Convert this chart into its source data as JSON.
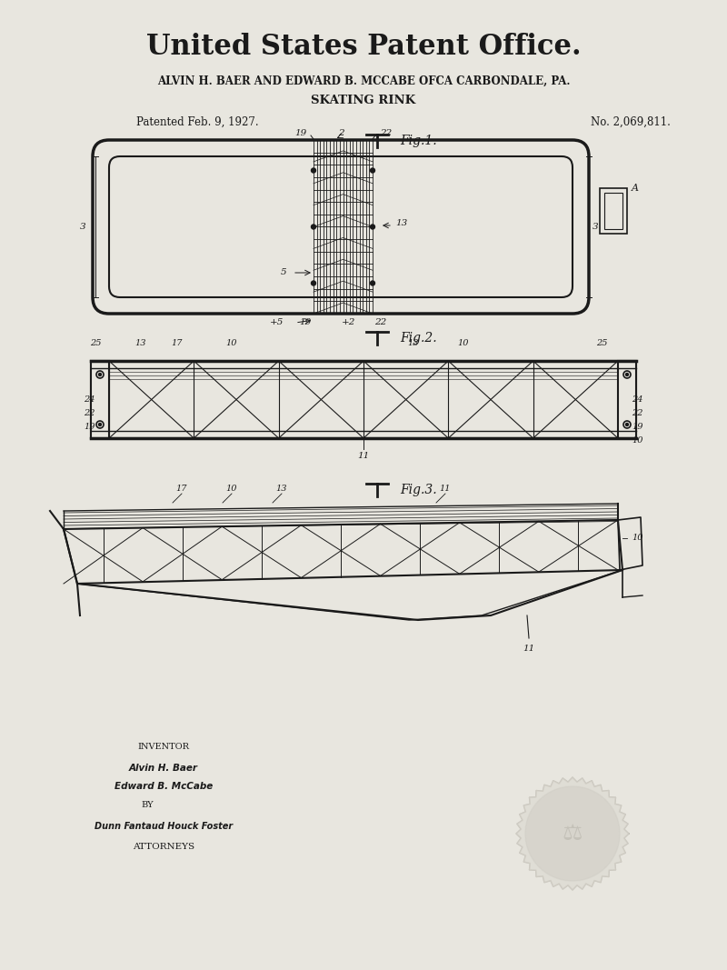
{
  "bg_color": "#e8e6df",
  "line_color": "#1a1a1a",
  "title_main": "United States Patent Office.",
  "title_sub1": "ALVIN H. BAER AND EDWARD B. MCCABE OFCA CARBONDALE, PA.",
  "title_sub2": "SKATING RINK",
  "patent_left": "Patented Feb. 9, 1927.",
  "patent_right": "No. 2,069,811.",
  "fig1_label": "Fig.1.",
  "fig2_label": "Fig.2.",
  "fig3_label": "Fig.3.",
  "inventor_text": "INVENTOR\nAlvin H. Baer\nEdward B. McCabe\nBY",
  "attorneys_text": "ATTORNEYS"
}
